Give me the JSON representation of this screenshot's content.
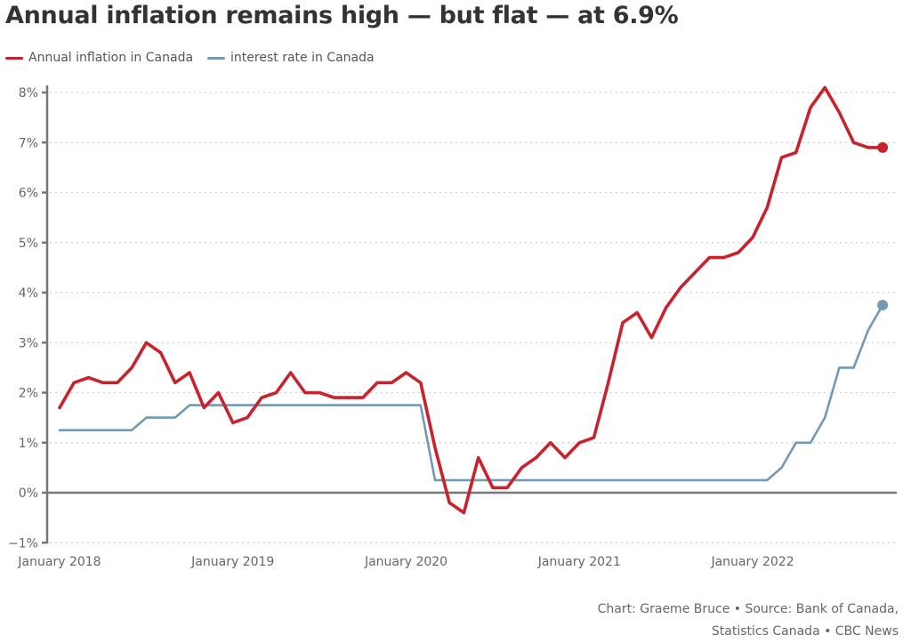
{
  "chart_data": {
    "type": "line",
    "title": "Annual inflation remains high — but flat — at 6.9%",
    "xlabel": "",
    "ylabel": "",
    "ylim": [
      -1,
      8
    ],
    "y_ticks": [
      -1,
      0,
      1,
      2,
      3,
      4,
      5,
      6,
      7,
      8
    ],
    "y_tick_labels": [
      "−1%",
      "0%",
      "1%",
      "2%",
      "3%",
      "4%",
      "5%",
      "6%",
      "7%",
      "8%"
    ],
    "x_ticks": [
      0,
      12,
      24,
      36,
      48
    ],
    "x_tick_labels": [
      "January 2018",
      "January 2019",
      "January 2020",
      "January 2021",
      "January 2022"
    ],
    "x_unit": "month index from January 2018 (monthly, January 2018 – October 2022)",
    "grid": true,
    "legend_position": "top-left",
    "series": [
      {
        "name": "Annual inflation in Canada",
        "color": "#c8222c",
        "values": [
          1.7,
          2.2,
          2.3,
          2.2,
          2.2,
          2.5,
          3.0,
          2.8,
          2.2,
          2.4,
          1.7,
          2.0,
          1.4,
          1.5,
          1.9,
          2.0,
          2.4,
          2.0,
          2.0,
          1.9,
          1.9,
          1.9,
          2.2,
          2.2,
          2.4,
          2.2,
          0.9,
          -0.2,
          -0.4,
          0.7,
          0.1,
          0.1,
          0.5,
          0.7,
          1.0,
          0.7,
          1.0,
          1.1,
          2.2,
          3.4,
          3.6,
          3.1,
          3.7,
          4.1,
          4.4,
          4.7,
          4.7,
          4.8,
          5.1,
          5.7,
          6.7,
          6.8,
          7.7,
          8.1,
          7.6,
          7.0,
          6.9,
          6.9
        ]
      },
      {
        "name": "interest rate in Canada",
        "color": "#7399b4",
        "values": [
          1.25,
          1.25,
          1.25,
          1.25,
          1.25,
          1.25,
          1.5,
          1.5,
          1.5,
          1.75,
          1.75,
          1.75,
          1.75,
          1.75,
          1.75,
          1.75,
          1.75,
          1.75,
          1.75,
          1.75,
          1.75,
          1.75,
          1.75,
          1.75,
          1.75,
          1.75,
          0.25,
          0.25,
          0.25,
          0.25,
          0.25,
          0.25,
          0.25,
          0.25,
          0.25,
          0.25,
          0.25,
          0.25,
          0.25,
          0.25,
          0.25,
          0.25,
          0.25,
          0.25,
          0.25,
          0.25,
          0.25,
          0.25,
          0.25,
          0.25,
          0.5,
          1.0,
          1.0,
          1.5,
          2.5,
          2.5,
          3.25,
          3.75
        ]
      }
    ]
  },
  "footer": {
    "line1": "Chart: Graeme Bruce • Source: Bank of Canada,",
    "line2": "Statistics Canada • CBC News"
  }
}
